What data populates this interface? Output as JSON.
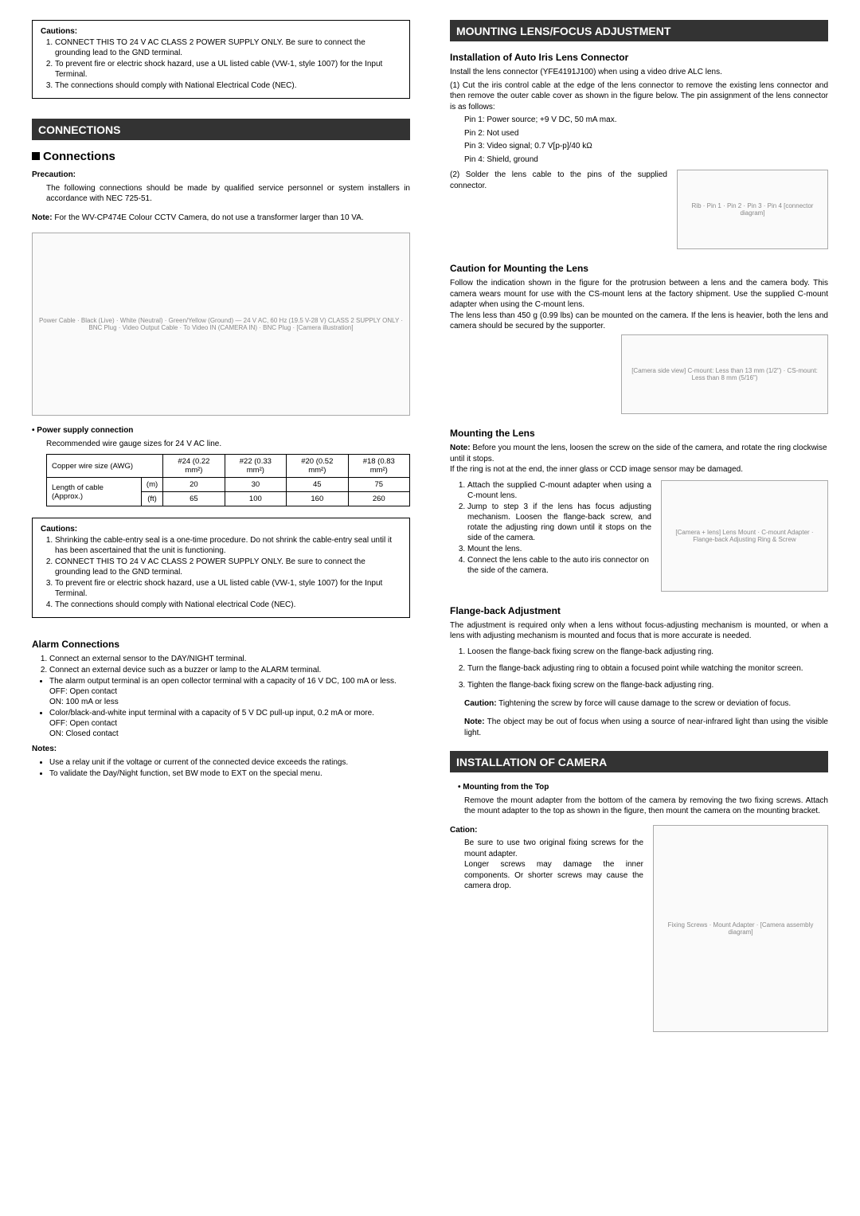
{
  "left": {
    "cautions_top": {
      "title": "Cautions:",
      "items": [
        "CONNECT THIS TO 24 V AC CLASS 2 POWER SUPPLY ONLY. Be sure to connect the grounding lead to the GND terminal.",
        "To prevent fire or electric shock hazard, use a UL listed cable (VW-1, style 1007) for the Input Terminal.",
        "The connections should comply with National Electrical Code (NEC)."
      ]
    },
    "connections_header": "CONNECTIONS",
    "connections_title": "Connections",
    "precaution_label": "Precaution:",
    "precaution_text": "The following connections should be made by qualified service personnel or system installers in accordance with NEC 725-51.",
    "note_label": "Note:",
    "note_text": "For the WV-CP474E Colour CCTV Camera, do not use a transformer larger than 10 VA.",
    "diagram_caption": "Power Cable · Black (Live) · White (Neutral) · Green/Yellow (Ground) — 24 V AC, 60 Hz (19.5 V-28 V) CLASS 2 SUPPLY ONLY · BNC Plug · Video Output Cable · To Video IN (CAMERA IN) · BNC Plug · [Camera illustration]",
    "power_supply_label": "• Power supply connection",
    "power_supply_sub": "Recommended wire gauge sizes for 24 V AC line.",
    "table": {
      "row0": [
        "Copper wire size (AWG)",
        "#24 (0.22 mm²)",
        "#22 (0.33 mm²)",
        "#20 (0.52 mm²)",
        "#18 (0.83 mm²)"
      ],
      "row_label": "Length of cable (Approx.)",
      "row1_unit": "(m)",
      "row1": [
        "20",
        "30",
        "45",
        "75"
      ],
      "row2_unit": "(ft)",
      "row2": [
        "65",
        "100",
        "160",
        "260"
      ]
    },
    "cautions_mid": {
      "title": "Cautions:",
      "items": [
        "Shrinking the cable-entry seal is a one-time procedure. Do not shrink the cable-entry seal until it has been ascertained that the unit is functioning.",
        "CONNECT THIS TO 24 V AC CLASS 2 POWER SUPPLY ONLY. Be sure to connect the grounding lead to the GND terminal.",
        "To prevent fire or electric shock hazard, use a UL listed cable (VW-1, style 1007) for the Input Terminal.",
        "The connections should comply with National electrical Code (NEC)."
      ]
    },
    "alarm_title": "Alarm Connections",
    "alarm_steps": [
      "Connect an external sensor to the DAY/NIGHT terminal.",
      "Connect an external device such as a buzzer or lamp to the ALARM terminal."
    ],
    "alarm_bullets": [
      "The alarm output terminal is an open collector terminal with a capacity of 16 V DC, 100 mA or less.\nOFF: Open contact\nON: 100 mA or less",
      "Color/black-and-white input terminal with a capacity of 5 V DC pull-up input, 0.2 mA or more.\nOFF: Open contact\nON: Closed contact"
    ],
    "notes_label": "Notes:",
    "notes_items": [
      "Use a relay unit if the voltage or current of the connected device exceeds the ratings.",
      "To validate the Day/Night function, set BW mode to EXT on the special menu."
    ]
  },
  "right": {
    "mount_header": "MOUNTING LENS/FOCUS ADJUSTMENT",
    "install_iris_title": "Installation of Auto Iris Lens Connector",
    "install_iris_intro": "Install the lens connector (YFE4191J100) when using a video drive ALC lens.",
    "install_iris_step1": "Cut the iris control cable at the edge of the lens connector to remove the existing lens connector and then remove the outer cable cover as shown in the figure below. The pin assignment of the lens connector is as follows:",
    "pins": [
      "Pin 1: Power source; +9 V DC, 50 mA max.",
      "Pin 2: Not used",
      "Pin 3: Video signal; 0.7 V[p-p]/40 kΩ",
      "Pin 4: Shield, ground"
    ],
    "install_iris_step2": "Solder the lens cable to the pins of the supplied connector.",
    "connector_fig": "Rib · Pin 1 · Pin 2 · Pin 3 · Pin 4 [connector diagram]",
    "caution_lens_title": "Caution for Mounting the Lens",
    "caution_lens_text": "Follow the indication shown in the figure for the protrusion between a lens and the camera body. This camera wears mount for use with the CS-mount lens at the factory shipment. Use the supplied C-mount adapter when using the C-mount lens.\nThe lens less than 450 g (0.99 lbs) can be mounted on the camera. If the lens is heavier, both the lens and camera should be secured by the supporter.",
    "caution_lens_fig": "[Camera side view] C-mount: Less than 13 mm (1/2\") · CS-mount: Less than 8 mm (5/16\")",
    "mount_lens_title": "Mounting the Lens",
    "mount_lens_note_label": "Note:",
    "mount_lens_note": "Before you mount the lens, loosen the screw on the side of the camera, and rotate the ring clockwise until it stops.\nIf the ring is not at the end, the inner glass or CCD image sensor may be damaged.",
    "mount_steps": [
      "Attach the supplied C-mount adapter when using a C-mount lens.",
      "Jump to step 3 if the lens has focus adjusting mechanism. Loosen the flange-back screw, and rotate the adjusting ring down until it stops on the side of the camera.",
      "Mount the lens.",
      "Connect the lens cable to the auto iris connector on the side of the camera."
    ],
    "mount_fig": "[Camera + lens] Lens Mount · C-mount Adapter · Flange-back Adjusting Ring & Screw",
    "flange_title": "Flange-back Adjustment",
    "flange_text": "The adjustment is required only when a lens without focus-adjusting mechanism is mounted, or when a lens with adjusting mechanism is mounted and focus that is more accurate is needed.",
    "flange_steps": [
      "Loosen the flange-back fixing screw on the flange-back adjusting ring.",
      "Turn the flange-back adjusting ring to obtain a focused point while watching the monitor screen.",
      "Tighten the flange-back fixing screw on the flange-back adjusting ring."
    ],
    "flange_caution_label": "Caution:",
    "flange_caution": "Tightening the screw by force will cause damage to the screw or deviation of focus.",
    "flange_note_label": "Note:",
    "flange_note": "The object may be out of focus when using a source of near-infrared light than using the visible light.",
    "install_cam_header": "INSTALLATION OF CAMERA",
    "mount_top_label": "• Mounting from the Top",
    "mount_top_text": "Remove the mount adapter from the bottom of the camera by removing the two fixing screws.  Attach the mount adapter to the top as shown in the figure, then mount the camera on the mounting bracket.",
    "cation_label": "Cation:",
    "cation_text": "Be sure to use two original fixing screws for the mount adapter.\nLonger screws may damage the inner components. Or shorter screws may cause the camera drop.",
    "install_cam_fig": "Fixing Screws · Mount Adapter · [Camera assembly diagram]"
  }
}
